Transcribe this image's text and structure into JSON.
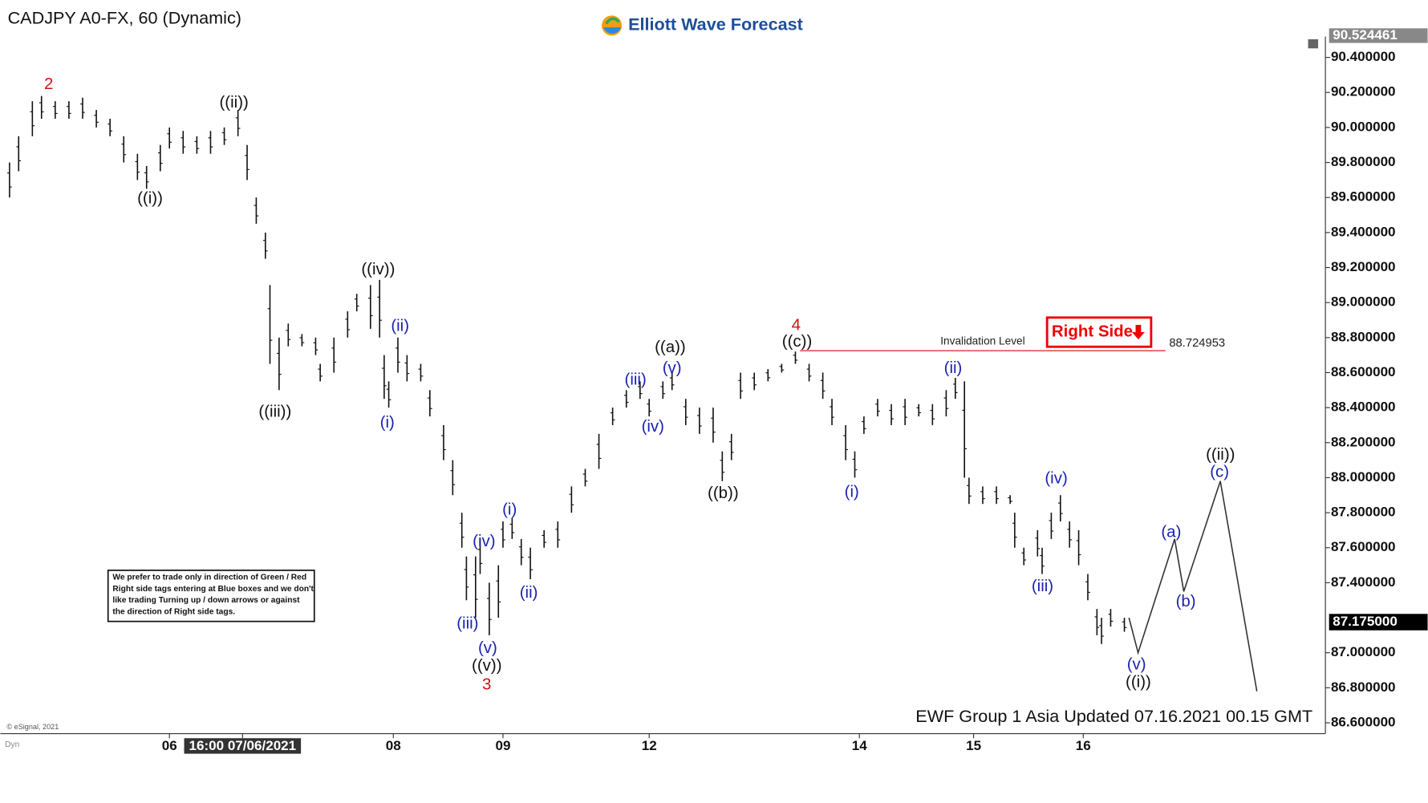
{
  "chart_data": {
    "type": "ohlc",
    "title": "CADJPY A0-FX, 60 (Dynamic)",
    "brand": "Elliott Wave Forecast",
    "footer": "EWF Group 1 Asia Updated 07.16.2021 00.15 GMT",
    "copyright": "© eSignal, 2021",
    "corner_label": "Dyn",
    "right_side_tag": "Right Side",
    "note": [
      "We prefer to trade only in direction of Green / Red",
      "Right side tags entering at Blue boxes and we don't",
      "like trading Turning up / down arrows or against",
      "the direction of Right side tags."
    ],
    "color": "#111111",
    "xlim": [
      0,
      290
    ],
    "ylim": [
      86.538,
      90.728
    ],
    "xticks": [
      {
        "value": 37,
        "label": "06"
      },
      {
        "value": 53,
        "label": "16:00 07/06/2021"
      },
      {
        "value": 86,
        "label": "08"
      },
      {
        "value": 110,
        "label": "09"
      },
      {
        "value": 142,
        "label": "12"
      },
      {
        "value": 188,
        "label": "14"
      },
      {
        "value": 213,
        "label": "15"
      },
      {
        "value": 237,
        "label": "16"
      }
    ],
    "yticks": [
      {
        "value": 86.6,
        "label": "86.600000"
      },
      {
        "value": 86.8,
        "label": "86.800000"
      },
      {
        "value": 87.0,
        "label": "87.000000"
      },
      {
        "value": 87.4,
        "label": "87.400000"
      },
      {
        "value": 87.6,
        "label": "87.600000"
      },
      {
        "value": 87.8,
        "label": "87.800000"
      },
      {
        "value": 88.0,
        "label": "88.000000"
      },
      {
        "value": 88.2,
        "label": "88.200000"
      },
      {
        "value": 88.4,
        "label": "88.400000"
      },
      {
        "value": 88.6,
        "label": "88.600000"
      },
      {
        "value": 88.8,
        "label": "88.800000"
      },
      {
        "value": 89.0,
        "label": "89.000000"
      },
      {
        "value": 89.2,
        "label": "89.200000"
      },
      {
        "value": 89.4,
        "label": "89.400000"
      },
      {
        "value": 89.6,
        "label": "89.600000"
      },
      {
        "value": 89.8,
        "label": "89.800000"
      },
      {
        "value": 90.0,
        "label": "90.000000"
      },
      {
        "value": 90.2,
        "label": "90.200000"
      },
      {
        "value": 90.4,
        "label": "90.400000"
      }
    ],
    "high_marker": 90.524461,
    "last_price": {
      "value": 87.175,
      "label": "87.175000"
    },
    "x": [
      2,
      4,
      7,
      9,
      12,
      15,
      18,
      21,
      24,
      27,
      30,
      32,
      35,
      37,
      40,
      43,
      46,
      49,
      52,
      54,
      56,
      58,
      59,
      61,
      63,
      66,
      69,
      70,
      73,
      76,
      78,
      81,
      83,
      84,
      85,
      87,
      89,
      92,
      94,
      97,
      99,
      101,
      102,
      104,
      105,
      107,
      109,
      110,
      112,
      114,
      116,
      119,
      122,
      125,
      128,
      131,
      134,
      137,
      140,
      142,
      145,
      147,
      150,
      153,
      156,
      158,
      160,
      162,
      165,
      168,
      171,
      174,
      177,
      180,
      182,
      185,
      187,
      189,
      192,
      195,
      198,
      201,
      204,
      207,
      209,
      211,
      212,
      215,
      218,
      221,
      222,
      224,
      227,
      228,
      230,
      232,
      234,
      236,
      238,
      240,
      241,
      243,
      246
    ],
    "high": [
      89.8,
      89.95,
      90.15,
      90.18,
      90.15,
      90.15,
      90.17,
      90.1,
      90.05,
      89.95,
      89.85,
      89.78,
      89.9,
      90.0,
      89.98,
      89.95,
      89.98,
      90.0,
      90.1,
      89.9,
      89.6,
      89.4,
      89.1,
      88.8,
      88.88,
      88.82,
      88.8,
      88.65,
      88.8,
      88.95,
      89.05,
      89.1,
      89.13,
      88.7,
      88.55,
      88.8,
      88.7,
      88.65,
      88.5,
      88.3,
      88.1,
      87.8,
      87.55,
      87.55,
      87.65,
      87.4,
      87.5,
      87.75,
      87.77,
      87.65,
      87.6,
      87.7,
      87.75,
      87.95,
      88.05,
      88.25,
      88.4,
      88.5,
      88.55,
      88.45,
      88.55,
      88.6,
      88.45,
      88.4,
      88.4,
      88.15,
      88.25,
      88.6,
      88.6,
      88.62,
      88.65,
      88.72,
      88.65,
      88.6,
      88.45,
      88.3,
      88.15,
      88.35,
      88.45,
      88.42,
      88.45,
      88.42,
      88.42,
      88.5,
      88.57,
      88.55,
      88.0,
      87.95,
      87.95,
      87.9,
      87.8,
      87.6,
      87.7,
      87.6,
      87.8,
      87.9,
      87.75,
      87.7,
      87.45,
      87.25,
      87.2,
      87.25,
      87.2
    ],
    "low": [
      89.6,
      89.75,
      89.95,
      90.05,
      90.05,
      90.05,
      90.05,
      90.0,
      89.95,
      89.8,
      89.7,
      89.65,
      89.75,
      89.88,
      89.85,
      89.85,
      89.85,
      89.9,
      89.95,
      89.7,
      89.45,
      89.25,
      88.65,
      88.5,
      88.75,
      88.75,
      88.7,
      88.55,
      88.6,
      88.8,
      88.95,
      88.85,
      88.8,
      88.45,
      88.4,
      88.6,
      88.55,
      88.55,
      88.35,
      88.1,
      87.9,
      87.6,
      87.3,
      87.2,
      87.45,
      87.1,
      87.2,
      87.6,
      87.65,
      87.5,
      87.42,
      87.6,
      87.6,
      87.8,
      87.95,
      88.05,
      88.3,
      88.4,
      88.45,
      88.35,
      88.45,
      88.5,
      88.3,
      88.25,
      88.2,
      87.98,
      88.1,
      88.45,
      88.5,
      88.55,
      88.6,
      88.65,
      88.55,
      88.45,
      88.3,
      88.1,
      88.0,
      88.25,
      88.35,
      88.3,
      88.3,
      88.35,
      88.3,
      88.35,
      88.45,
      88.0,
      87.85,
      87.85,
      87.85,
      87.85,
      87.6,
      87.5,
      87.55,
      87.45,
      87.65,
      87.75,
      87.6,
      87.5,
      87.3,
      87.1,
      87.05,
      87.15,
      87.12
    ],
    "projection": {
      "color": "#333333",
      "x": [
        247,
        249,
        257,
        259,
        267,
        275
      ],
      "values": [
        87.2,
        87.0,
        87.65,
        87.35,
        87.98,
        86.78
      ]
    },
    "invalidation": {
      "label": "Invalidation Level",
      "value": 88.724953,
      "color": "#e03030",
      "x": [
        175,
        255
      ]
    },
    "wave_labels": [
      {
        "text": "2",
        "color": "#d01010"
      },
      {
        "text": "((i))",
        "color": "#111111"
      },
      {
        "text": "((ii))",
        "color": "#111111"
      },
      {
        "text": "((iii))",
        "color": "#111111"
      },
      {
        "text": "((iv))",
        "color": "#111111"
      },
      {
        "text": "(i)",
        "color": "#1a22b0"
      },
      {
        "text": "(ii)",
        "color": "#1a22b0"
      },
      {
        "text": "(i)",
        "color": "#1a22b0"
      },
      {
        "text": "(iv)",
        "color": "#1a22b0"
      },
      {
        "text": "(ii)",
        "color": "#1a22b0"
      },
      {
        "text": "(iii)",
        "color": "#1a22b0"
      },
      {
        "text": "(v)",
        "color": "#1a22b0"
      },
      {
        "text": "((v))",
        "color": "#111111"
      },
      {
        "text": "3",
        "color": "#d01010"
      },
      {
        "text": "(iii)",
        "color": "#1a22b0"
      },
      {
        "text": "(v)",
        "color": "#1a22b0"
      },
      {
        "text": "((a))",
        "color": "#111111"
      },
      {
        "text": "(iv)",
        "color": "#1a22b0"
      },
      {
        "text": "((b))",
        "color": "#111111"
      },
      {
        "text": "4",
        "color": "#d01010"
      },
      {
        "text": "((c))",
        "color": "#111111"
      },
      {
        "text": "(i)",
        "color": "#1a22b0"
      },
      {
        "text": "(ii)",
        "color": "#1a22b0"
      },
      {
        "text": "(iv)",
        "color": "#1a22b0"
      },
      {
        "text": "(iii)",
        "color": "#1a22b0"
      },
      {
        "text": "(v)",
        "color": "#1a22b0"
      },
      {
        "text": "((i))",
        "color": "#111111"
      },
      {
        "text": "(a)",
        "color": "#1a22b0"
      },
      {
        "text": "(b)",
        "color": "#1a22b0"
      },
      {
        "text": "(c)",
        "color": "#1a22b0"
      },
      {
        "text": "((ii))",
        "color": "#111111"
      }
    ]
  }
}
